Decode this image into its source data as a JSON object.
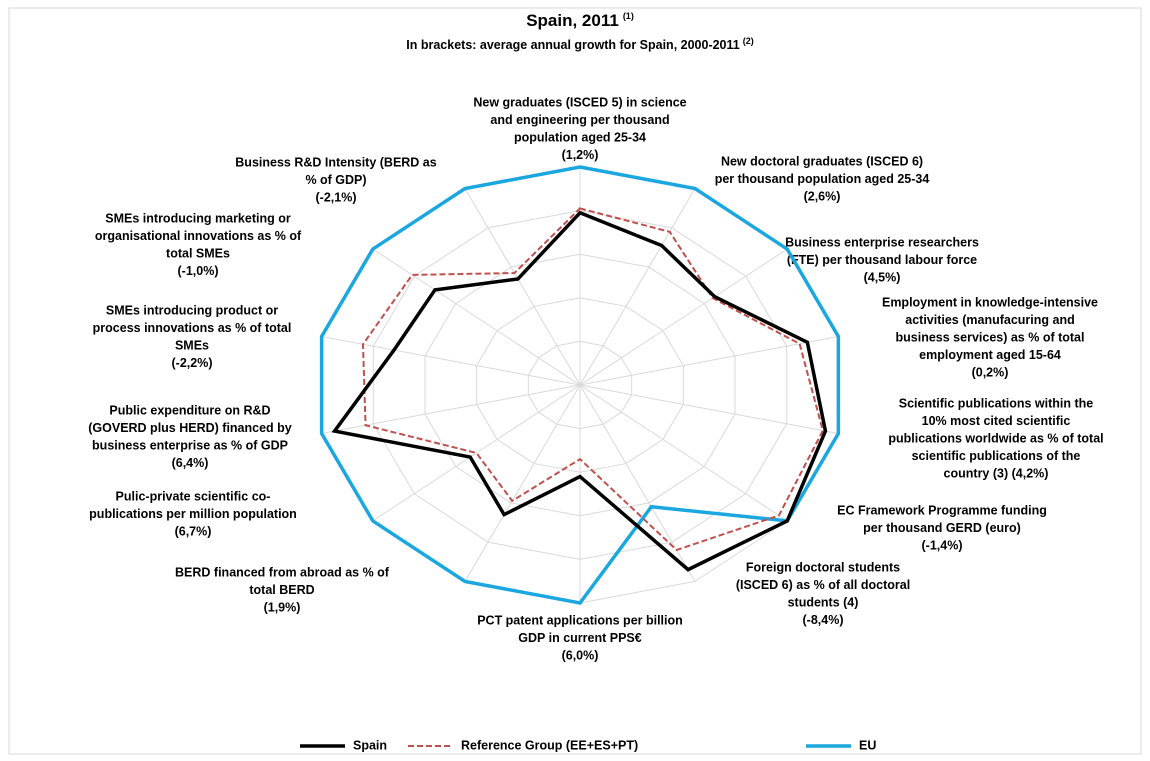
{
  "chart_data": {
    "type": "radar",
    "title": "Spain, 2011",
    "title_note": "(1)",
    "subtitle": "In brackets: average annual growth for Spain, 2000-2011",
    "subtitle_note": "(2)",
    "categories": [
      [
        "New graduates (ISCED 5) in science",
        "and engineering per thousand",
        "population aged 25-34",
        "(1,2%)"
      ],
      [
        "New doctoral graduates (ISCED 6)",
        "per thousand population aged 25-34",
        "(2,6%)"
      ],
      [
        "Business enterprise researchers",
        "(FTE) per thousand labour force",
        "(4,5%)"
      ],
      [
        "Employment in knowledge-intensive",
        "activities (manufacuring and",
        "business services) as % of total",
        "employment aged 15-64",
        "(0,2%)"
      ],
      [
        "Scientific publications within the",
        "10% most cited scientific",
        "publications worldwide as % of total",
        "scientific publications of the",
        "country (3) (4,2%)"
      ],
      [
        "EC Framework Programme funding",
        "per thousand GERD (euro)",
        "(-1,4%)"
      ],
      [
        "Foreign doctoral students",
        "(ISCED 6) as % of all doctoral",
        "students (4)",
        "(-8,4%)"
      ],
      [
        "PCT patent applications per billion",
        "GDP in current PPS€",
        "(6,0%)"
      ],
      [
        "BERD financed from abroad as % of",
        "total BERD",
        "(1,9%)"
      ],
      [
        "Pulic-private scientific co-",
        "publications per million population",
        "(6,7%)"
      ],
      [
        "Public expenditure on R&D",
        "(GOVERD plus HERD) financed by",
        "business enterprise as % of GDP",
        "(6,4%)"
      ],
      [
        "SMEs introducing product or",
        "process innovations as % of total",
        "SMEs",
        "(-2,2%)"
      ],
      [
        "SMEs introducing marketing or",
        "organisational innovations as % of",
        "total SMEs",
        "(-1,0%)"
      ],
      [
        "Business R&D Intensity (BERD as",
        "% of GDP)",
        "(-2,1%)"
      ]
    ],
    "series": [
      {
        "name": "Spain",
        "color": "#000000",
        "dash": "solid",
        "values": [
          0.79,
          0.71,
          0.65,
          0.88,
          0.95,
          1.0,
          0.94,
          0.42,
          0.66,
          0.53,
          0.95,
          0.72,
          0.7,
          0.54
        ]
      },
      {
        "name": "Reference Group (EE+ES+PT)",
        "color": "#c0504d",
        "dash": "dashed",
        "values": [
          0.81,
          0.78,
          0.64,
          0.85,
          0.94,
          0.96,
          0.84,
          0.34,
          0.59,
          0.5,
          0.83,
          0.84,
          0.81,
          0.57
        ]
      },
      {
        "name": "EU",
        "color": "#1aa7e0",
        "dash": "solid",
        "values": [
          1,
          1,
          1,
          1,
          1,
          1,
          0.62,
          1,
          1,
          1,
          1,
          1,
          1,
          1
        ]
      }
    ],
    "rlim": [
      0,
      1
    ],
    "rticks": [
      0.2,
      0.4,
      0.6,
      0.8,
      1
    ],
    "grid": true,
    "legend": "bottom"
  }
}
